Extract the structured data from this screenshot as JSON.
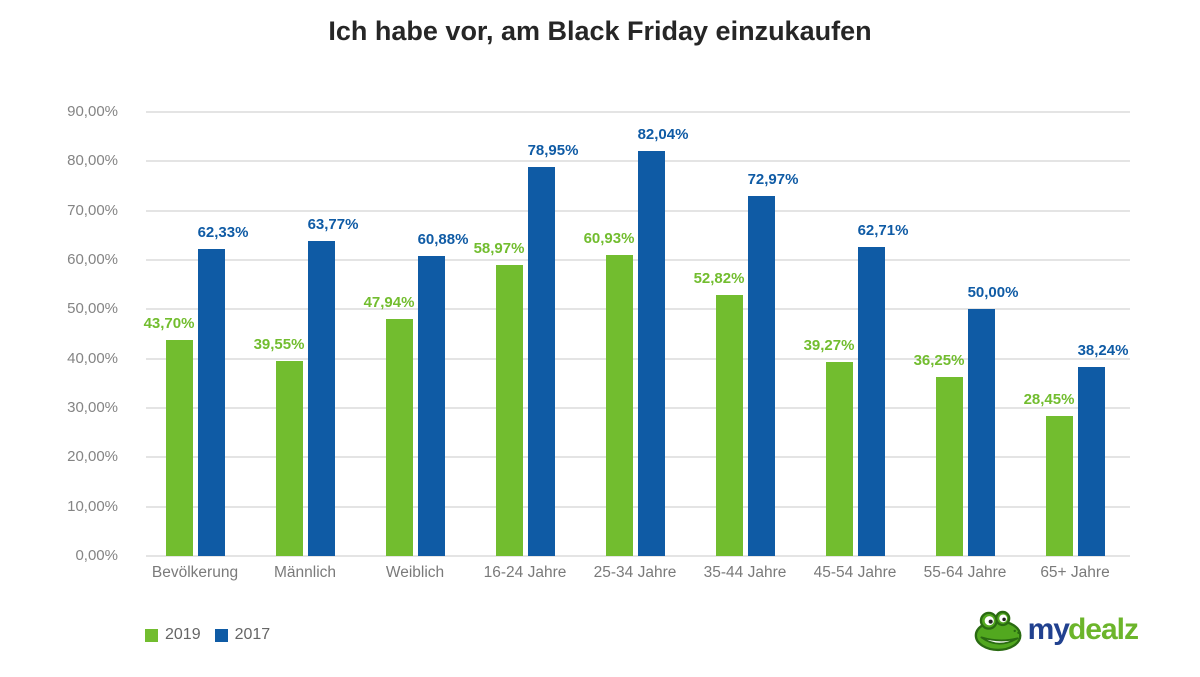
{
  "title": "Ich habe vor, am Black Friday einzukaufen",
  "chart_data": {
    "type": "bar",
    "title": "Ich habe vor, am Black Friday einzukaufen",
    "categories": [
      "Bevölkerung",
      "Männlich",
      "Weiblich",
      "16-24 Jahre",
      "25-34 Jahre",
      "35-44 Jahre",
      "45-54 Jahre",
      "55-64 Jahre",
      "65+ Jahre"
    ],
    "series": [
      {
        "name": "2019",
        "color": "#72bd2f",
        "values": [
          43.7,
          39.55,
          47.94,
          58.97,
          60.93,
          52.82,
          39.27,
          36.25,
          28.45
        ],
        "labels": [
          "43,70%",
          "39,55%",
          "47,94%",
          "58,97%",
          "60,93%",
          "52,82%",
          "39,27%",
          "36,25%",
          "28,45%"
        ]
      },
      {
        "name": "2017",
        "color": "#0f5ba5",
        "values": [
          62.33,
          63.77,
          60.88,
          78.95,
          82.04,
          72.97,
          62.71,
          50.0,
          38.24
        ],
        "labels": [
          "62,33%",
          "63,77%",
          "60,88%",
          "78,95%",
          "82,04%",
          "72,97%",
          "62,71%",
          "50,00%",
          "38,24%"
        ]
      }
    ],
    "xlabel": "",
    "ylabel": "",
    "ylim": [
      0,
      90
    ],
    "ytick_step": 10,
    "ytick_labels": [
      "0,00%",
      "10,00%",
      "20,00%",
      "30,00%",
      "40,00%",
      "50,00%",
      "60,00%",
      "70,00%",
      "80,00%",
      "90,00%"
    ],
    "grid": "horizontal",
    "legend_position": "bottom-left"
  },
  "legend": {
    "items": [
      {
        "label": "2019",
        "color": "#72bd2f"
      },
      {
        "label": "2017",
        "color": "#0f5ba5"
      }
    ]
  },
  "logo": {
    "text_my": "my",
    "text_dealz": "dealz",
    "color_my": "#21418f",
    "color_dealz": "#6cb52b",
    "icon": "gecko-icon",
    "icon_green": "#52a81f",
    "icon_outline": "#2a6b12"
  },
  "colors": {
    "series_2019": "#72bd2f",
    "series_2017": "#0f5ba5",
    "gridline": "#e4e4e4",
    "axis_text": "#848484",
    "title_text": "#262626"
  }
}
